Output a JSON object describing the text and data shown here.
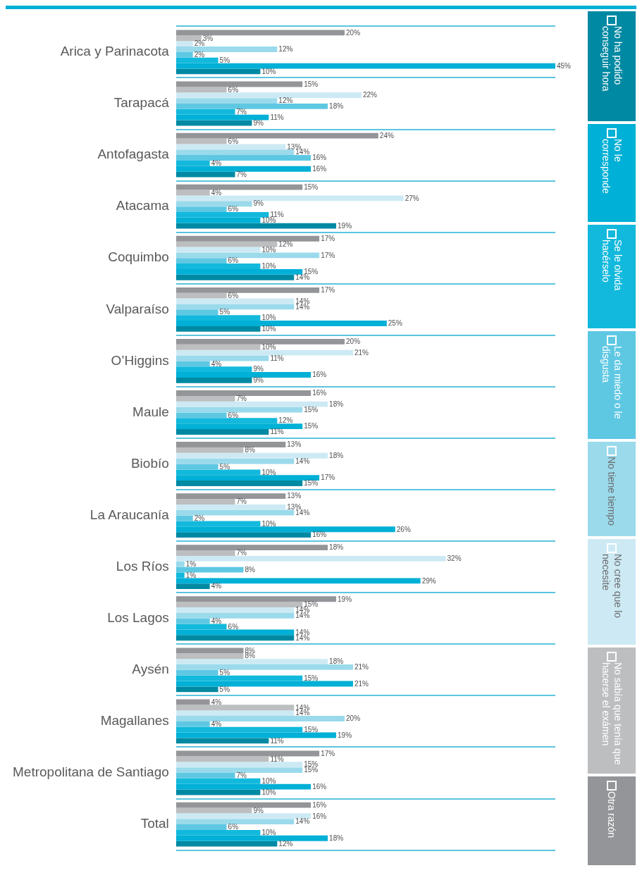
{
  "chart_data": {
    "type": "bar",
    "orientation": "horizontal",
    "grid": "y",
    "legend": "right",
    "categories": [
      "Arica y Parinacota",
      "Tarapacá",
      "Antofagasta",
      "Atacama",
      "Coquimbo",
      "Valparaíso",
      "O’Higgins",
      "Maule",
      "Biobío",
      "La Araucanía",
      "Los Ríos",
      "Los Lagos",
      "Aysén",
      "Magallanes",
      "Metropolitana de Santiago",
      "Total"
    ],
    "series": [
      {
        "name": "Otra razón",
        "color": "#939598",
        "values": [
          20,
          15,
          24,
          15,
          17,
          17,
          20,
          16,
          13,
          13,
          18,
          19,
          8,
          4,
          17,
          16
        ],
        "value_labels": [
          "20%",
          "15%",
          "24%",
          "15%",
          "17%",
          "17%",
          "20%",
          "16%",
          "13%",
          "13%",
          "18%",
          "19%",
          "8%",
          "4%",
          "17%",
          "16%"
        ]
      },
      {
        "name": "No sabía que tenía que hacerse el exámen",
        "color": "#bcbec0",
        "values": [
          3,
          6,
          6,
          4,
          12,
          6,
          10,
          7,
          8,
          7,
          7,
          15,
          8,
          14,
          11,
          9
        ],
        "value_labels": [
          "3%",
          "6%",
          "6%",
          "4%",
          "12%",
          "6%",
          "10%",
          "7%",
          "8%",
          "7%",
          "7%",
          "15%",
          "8%",
          "14%",
          "11%",
          "9%"
        ]
      },
      {
        "name": "No cree que lo necesite",
        "color": "#cdeaf4",
        "values": [
          2,
          22,
          13,
          27,
          10,
          14,
          21,
          18,
          18,
          13,
          32,
          14,
          18,
          14,
          15,
          16
        ],
        "value_labels": [
          "2%",
          "22%",
          "13%",
          "27%",
          "10%",
          "14%",
          "21%",
          "18%",
          "18%",
          "13%",
          "32%",
          "14%",
          "18%",
          "14%",
          "15%",
          "16%"
        ]
      },
      {
        "name": "No tiene tiempo",
        "color": "#9adaeb",
        "values": [
          12,
          12,
          14,
          9,
          17,
          14,
          11,
          15,
          14,
          14,
          1,
          14,
          21,
          20,
          15,
          14
        ],
        "value_labels": [
          "12%",
          "12%",
          "14%",
          "9%",
          "17%",
          "14%",
          "11%",
          "15%",
          "14%",
          "14%",
          "1%",
          "14%",
          "21%",
          "20%",
          "15%",
          "14%"
        ]
      },
      {
        "name": "Le da miedo o le disgusta",
        "color": "#5ec8e3",
        "values": [
          2,
          18,
          16,
          6,
          6,
          5,
          4,
          6,
          5,
          2,
          8,
          4,
          5,
          4,
          7,
          6
        ],
        "value_labels": [
          "2%",
          "18%",
          "16%",
          "6%",
          "6%",
          "5%",
          "4%",
          "6%",
          "5%",
          "2%",
          "8%",
          "4%",
          "5%",
          "4%",
          "7%",
          "6%"
        ]
      },
      {
        "name": "Se le olvida hacérselo",
        "color": "#12b9dc",
        "values": [
          5,
          7,
          4,
          11,
          10,
          10,
          9,
          12,
          10,
          10,
          1,
          6,
          15,
          15,
          10,
          10
        ],
        "value_labels": [
          "5%",
          "7%",
          "4%",
          "11%",
          "10%",
          "10%",
          "9%",
          "12%",
          "10%",
          "10%",
          "1%",
          "6%",
          "15%",
          "15%",
          "10%",
          "10%"
        ]
      },
      {
        "name": "No le corresponde",
        "color": "#00b0d6",
        "values": [
          45,
          11,
          16,
          10,
          15,
          25,
          16,
          15,
          17,
          26,
          29,
          14,
          21,
          19,
          16,
          18
        ],
        "value_labels": [
          "45%",
          "11%",
          "16%",
          "10%",
          "15%",
          "25%",
          "16%",
          "15%",
          "17%",
          "26%",
          "29%",
          "14%",
          "21%",
          "19%",
          "16%",
          "18%"
        ]
      },
      {
        "name": "No ha podido conseguir hora",
        "color": "#0089a3",
        "values": [
          10,
          9,
          7,
          19,
          14,
          10,
          9,
          11,
          15,
          16,
          4,
          14,
          5,
          11,
          10,
          12
        ],
        "value_labels": [
          "10%",
          "9%",
          "7%",
          "19%",
          "14%",
          "10%",
          "9%",
          "11%",
          "15%",
          "16%",
          "4%",
          "14%",
          "5%",
          "11%",
          "10%",
          "12%"
        ]
      }
    ]
  }
}
